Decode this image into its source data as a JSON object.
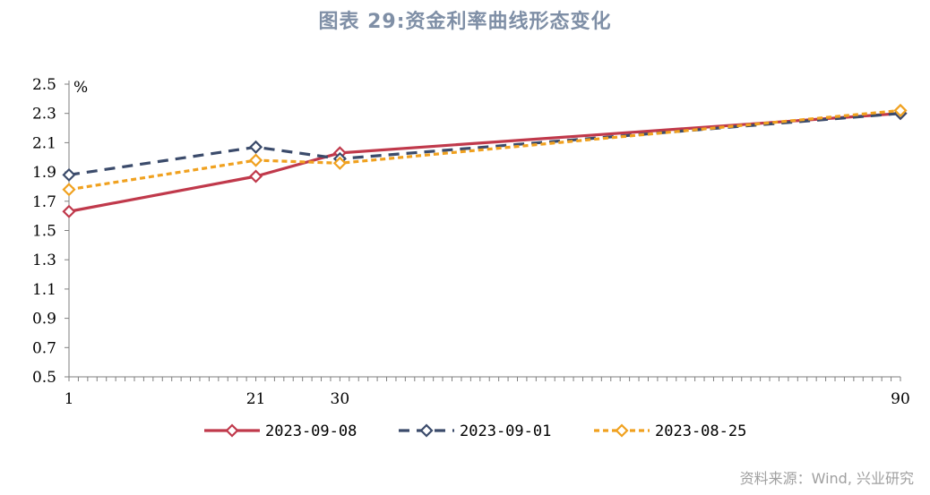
{
  "title": "图表 29:资金利率曲线形态变化",
  "source": "资料来源：Wind, 兴业研究",
  "chart_data": {
    "type": "line",
    "title": "图表 29:资金利率曲线形态变化",
    "xlabel": "",
    "ylabel": "%",
    "x": [
      1,
      21,
      30,
      90
    ],
    "x_tick_labels": [
      "1",
      "21",
      "30",
      "90"
    ],
    "xlim": [
      1,
      90
    ],
    "ylim": [
      0.5,
      2.5
    ],
    "y_ticks": [
      "0.5",
      "0.7",
      "0.9",
      "1.1",
      "1.3",
      "1.5",
      "1.7",
      "1.9",
      "2.1",
      "2.3",
      "2.5"
    ],
    "legend_position": "bottom",
    "series": [
      {
        "name": "2023-09-08",
        "values": [
          1.63,
          1.87,
          2.03,
          2.3
        ],
        "color": "#c0394b",
        "dash": "solid"
      },
      {
        "name": "2023-09-01",
        "values": [
          1.88,
          2.07,
          1.99,
          2.3
        ],
        "color": "#3b4b6b",
        "dash": "dashed"
      },
      {
        "name": "2023-08-25",
        "values": [
          1.78,
          1.98,
          1.96,
          2.32
        ],
        "color": "#f0a11f",
        "dash": "dotted"
      }
    ]
  }
}
